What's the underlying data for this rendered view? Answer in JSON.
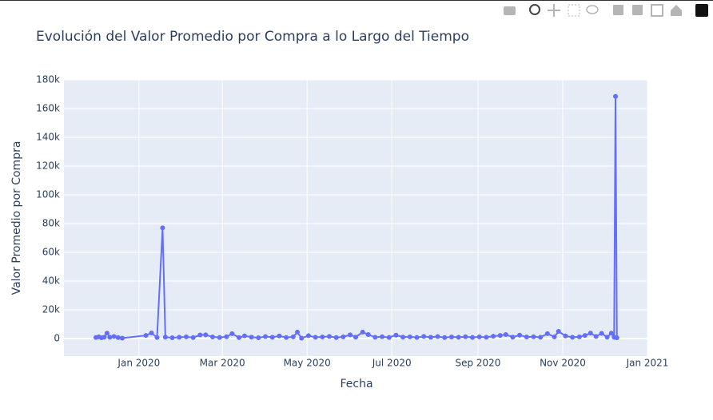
{
  "chart_data": {
    "type": "line",
    "title": "Evolución del Valor Promedio por Compra a lo Largo del Tiempo",
    "x_label": "Fecha",
    "y_label": "Valor Promedio por Compra",
    "x": [
      "2019-12-01",
      "2019-12-03",
      "2019-12-05",
      "2019-12-07",
      "2019-12-09",
      "2019-12-11",
      "2019-12-14",
      "2019-12-17",
      "2019-12-20",
      "2020-01-06",
      "2020-01-10",
      "2020-01-14",
      "2020-01-18",
      "2020-01-20",
      "2020-01-25",
      "2020-01-30",
      "2020-02-04",
      "2020-02-09",
      "2020-02-14",
      "2020-02-18",
      "2020-02-23",
      "2020-02-28",
      "2020-03-04",
      "2020-03-08",
      "2020-03-13",
      "2020-03-17",
      "2020-03-22",
      "2020-03-27",
      "2020-04-01",
      "2020-04-06",
      "2020-04-11",
      "2020-04-16",
      "2020-04-21",
      "2020-04-24",
      "2020-04-27",
      "2020-05-02",
      "2020-05-07",
      "2020-05-12",
      "2020-05-17",
      "2020-05-22",
      "2020-05-27",
      "2020-06-01",
      "2020-06-05",
      "2020-06-10",
      "2020-06-14",
      "2020-06-19",
      "2020-06-24",
      "2020-06-29",
      "2020-07-04",
      "2020-07-09",
      "2020-07-14",
      "2020-07-19",
      "2020-07-24",
      "2020-07-29",
      "2020-08-03",
      "2020-08-08",
      "2020-08-13",
      "2020-08-18",
      "2020-08-23",
      "2020-08-28",
      "2020-09-02",
      "2020-09-07",
      "2020-09-12",
      "2020-09-17",
      "2020-09-21",
      "2020-09-26",
      "2020-10-01",
      "2020-10-06",
      "2020-10-11",
      "2020-10-16",
      "2020-10-21",
      "2020-10-26",
      "2020-10-29",
      "2020-11-03",
      "2020-11-08",
      "2020-11-13",
      "2020-11-17",
      "2020-11-21",
      "2020-11-25",
      "2020-11-29",
      "2020-12-03",
      "2020-12-06",
      "2020-12-08",
      "2020-12-09",
      "2020-12-10"
    ],
    "series": [
      {
        "name": "Valor Promedio por Compra",
        "color": "#636efa",
        "values": [
          800,
          1200,
          600,
          1000,
          3800,
          900,
          1500,
          700,
          300,
          2200,
          3900,
          800,
          77000,
          1000,
          600,
          900,
          1200,
          700,
          2500,
          2600,
          1100,
          800,
          1300,
          3400,
          700,
          1900,
          1000,
          600,
          1400,
          900,
          1800,
          800,
          1200,
          4500,
          300,
          2000,
          900,
          1100,
          1500,
          700,
          1200,
          2600,
          1000,
          4500,
          2800,
          900,
          1300,
          800,
          2400,
          1000,
          1200,
          800,
          1500,
          900,
          1400,
          700,
          1100,
          900,
          1300,
          800,
          1200,
          900,
          1600,
          2200,
          2800,
          1000,
          2400,
          1100,
          1300,
          900,
          3400,
          1200,
          5000,
          1800,
          900,
          1200,
          2200,
          3800,
          1500,
          3600,
          1000,
          3800,
          900,
          168500,
          600
        ]
      }
    ],
    "xlim": [
      "2019-11-08",
      "2021-01-01"
    ],
    "xticks": [
      {
        "value": "2020-01-01",
        "label": "Jan 2020"
      },
      {
        "value": "2020-03-01",
        "label": "Mar 2020"
      },
      {
        "value": "2020-05-01",
        "label": "May 2020"
      },
      {
        "value": "2020-07-01",
        "label": "Jul 2020"
      },
      {
        "value": "2020-09-01",
        "label": "Sep 2020"
      },
      {
        "value": "2020-11-01",
        "label": "Nov 2020"
      },
      {
        "value": "2021-01-01",
        "label": "Jan 2021"
      }
    ],
    "ylim": [
      -12200,
      180000
    ],
    "yticks": [
      0,
      {
        "value": 20000,
        "label": "20k"
      },
      {
        "value": 40000,
        "label": "40k"
      },
      {
        "value": 60000,
        "label": "60k"
      },
      {
        "value": 80000,
        "label": "80k"
      },
      {
        "value": 100000,
        "label": "100k"
      },
      {
        "value": 120000,
        "label": "120k"
      },
      {
        "value": 140000,
        "label": "140k"
      },
      {
        "value": 160000,
        "label": "160k"
      },
      {
        "value": 180000,
        "label": "180k"
      }
    ],
    "grid": true
  }
}
